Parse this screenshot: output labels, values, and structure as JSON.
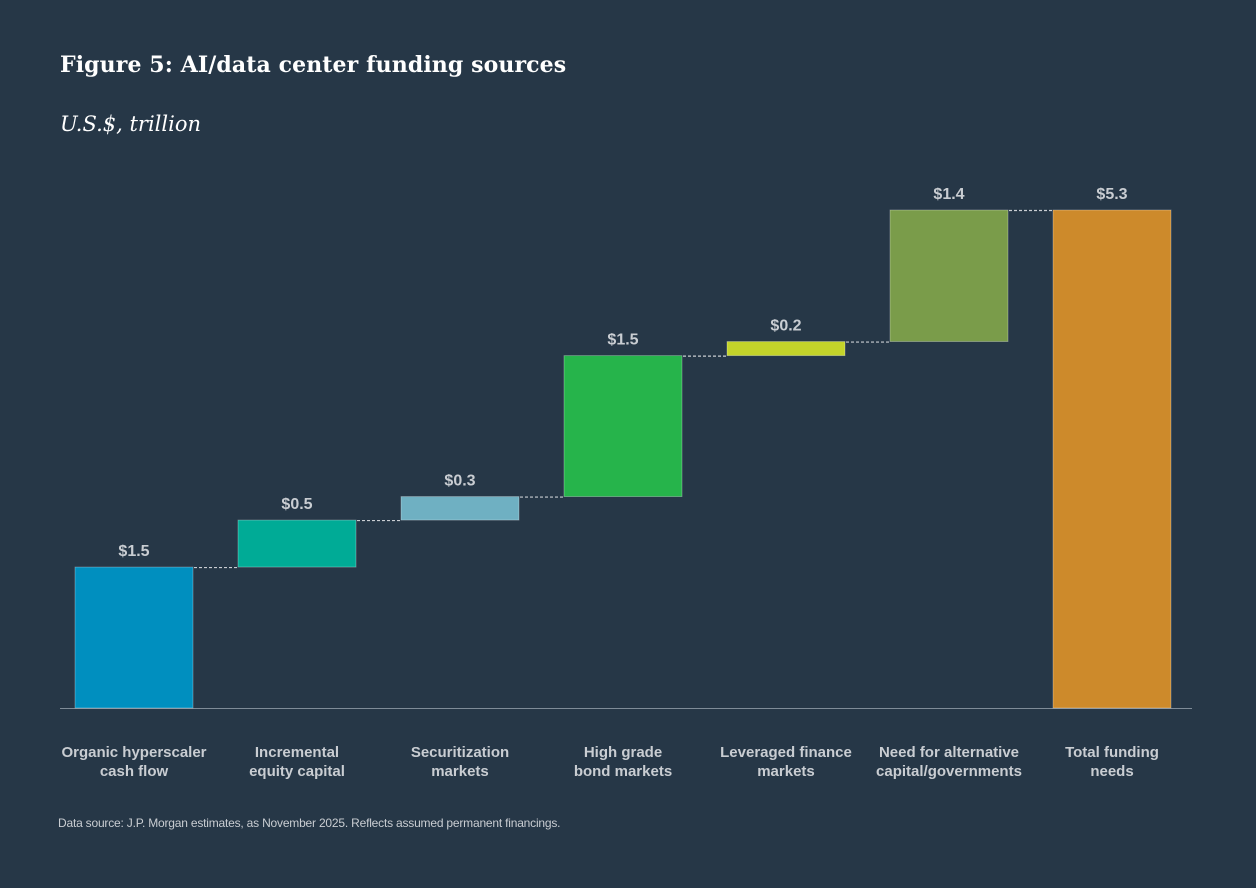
{
  "title": "Figure 5: AI/data center funding sources",
  "subtitle": "U.S.$, trillion",
  "source": "Data source: J.P. Morgan estimates, as November 2025. Reflects assumed permanent financings.",
  "chart_data": {
    "type": "waterfall",
    "title": "Figure 5: AI/data center funding sources",
    "subtitle": "U.S.$, trillion",
    "ylim": [
      0,
      5.3
    ],
    "grid": false,
    "bars": [
      {
        "label": [
          "Organic hyperscaler",
          "cash flow"
        ],
        "value": 1.5,
        "start": 0,
        "end": 1.5,
        "display": "$1.5",
        "color": "#008fbf",
        "kind": "increase"
      },
      {
        "label": [
          "Incremental",
          "equity capital"
        ],
        "value": 0.5,
        "start": 1.5,
        "end": 2.0,
        "display": "$0.5",
        "color": "#00ab96",
        "kind": "increase"
      },
      {
        "label": [
          "Securitization",
          "markets"
        ],
        "value": 0.3,
        "start": 2.0,
        "end": 2.25,
        "display": "$0.3",
        "color": "#6fb0c2",
        "kind": "increase"
      },
      {
        "label": [
          "High grade",
          "bond markets"
        ],
        "value": 1.5,
        "start": 2.25,
        "end": 3.75,
        "display": "$1.5",
        "color": "#26b44b",
        "kind": "increase"
      },
      {
        "label": [
          "Leveraged finance",
          "markets"
        ],
        "value": 0.2,
        "start": 3.75,
        "end": 3.9,
        "display": "$0.2",
        "color": "#c4d42a",
        "kind": "increase"
      },
      {
        "label": [
          "Need for alternative",
          "capital/governments"
        ],
        "value": 1.4,
        "start": 3.9,
        "end": 5.3,
        "display": "$1.4",
        "color": "#7a9c4a",
        "kind": "increase"
      },
      {
        "label": [
          "Total funding",
          "needs"
        ],
        "value": 5.3,
        "start": 0,
        "end": 5.3,
        "display": "$5.3",
        "color": "#cd8a2b",
        "kind": "total"
      }
    ]
  }
}
